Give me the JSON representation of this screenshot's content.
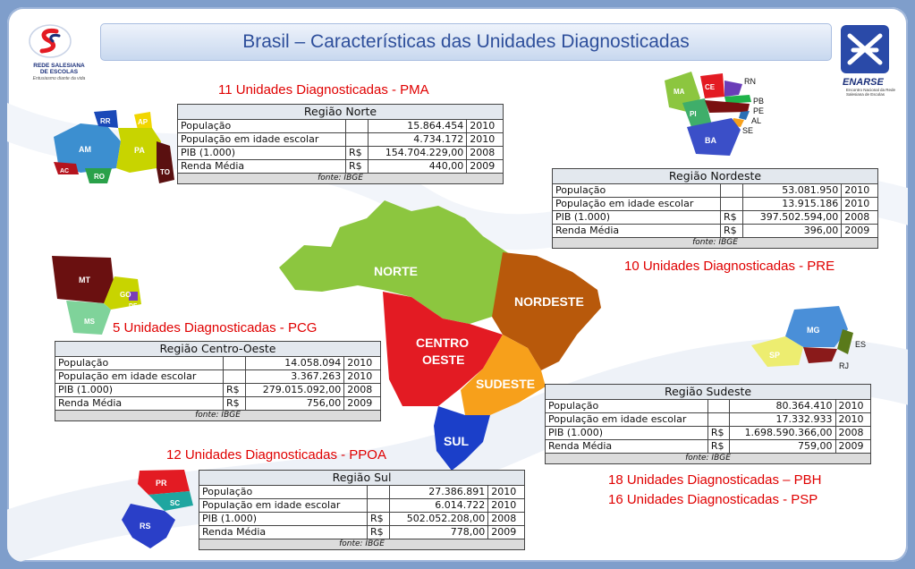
{
  "title": "Brasil – Características das Unidades Diagnosticadas",
  "logo_left": {
    "icon": "salesian-s-logo-icon",
    "name_line1": "REDE SALESIANA",
    "name_line2": "DE ESCOLAS",
    "tagline": "Entusiasmo diante da vida"
  },
  "logo_right": {
    "icon": "enarse-logo-icon",
    "name": "ENARSE",
    "sub": "Encontro Nacional da Rede Salesiana de Escolas"
  },
  "colors": {
    "norte": "#8cc63f",
    "nordeste": "#b8590b",
    "centro_oeste": "#e31b23",
    "sudeste": "#f7a01b",
    "sul": "#1b3fc9",
    "unit_text": "#e00000",
    "title_text": "#2e4f9b"
  },
  "regions": {
    "norte": {
      "units_label": "11 Unidades Diagnosticadas - PMA",
      "header": "Região Norte",
      "rows": [
        {
          "label": "População",
          "cur": "",
          "value": "15.864.454",
          "year": "2010"
        },
        {
          "label": "População em idade escolar",
          "cur": "",
          "value": "4.734.172",
          "year": "2010"
        },
        {
          "label": "PIB (1.000)",
          "cur": "R$",
          "value": "154.704.229,00",
          "year": "2008"
        },
        {
          "label": "Renda Média",
          "cur": "R$",
          "value": "440,00",
          "year": "2009"
        }
      ],
      "source": "fonte: IBGE",
      "states": [
        "RR",
        "AP",
        "AM",
        "PA",
        "AC",
        "RO",
        "TO"
      ]
    },
    "nordeste": {
      "units_label": "10 Unidades Diagnosticadas - PRE",
      "header": "Região Nordeste",
      "rows": [
        {
          "label": "População",
          "cur": "",
          "value": "53.081.950",
          "year": "2010"
        },
        {
          "label": "População em idade escolar",
          "cur": "",
          "value": "13.915.186",
          "year": "2010"
        },
        {
          "label": "PIB (1.000)",
          "cur": "R$",
          "value": "397.502.594,00",
          "year": "2008"
        },
        {
          "label": "Renda Média",
          "cur": "R$",
          "value": "396,00",
          "year": "2009"
        }
      ],
      "source": "fonte: IBGE",
      "states": [
        "MA",
        "CE",
        "RN",
        "PB",
        "PI",
        "PE",
        "AL",
        "SE",
        "BA"
      ]
    },
    "centro_oeste": {
      "units_label": "5 Unidades Diagnosticadas - PCG",
      "header": "Região Centro-Oeste",
      "rows": [
        {
          "label": "População",
          "cur": "",
          "value": "14.058.094",
          "year": "2010"
        },
        {
          "label": "População em idade escolar",
          "cur": "",
          "value": "3.367.263",
          "year": "2010"
        },
        {
          "label": "PIB (1.000)",
          "cur": "R$",
          "value": "279.015.092,00",
          "year": "2008"
        },
        {
          "label": "Renda Média",
          "cur": "R$",
          "value": "756,00",
          "year": "2009"
        }
      ],
      "source": "fonte: IBGE",
      "states": [
        "MT",
        "GO",
        "DF",
        "MS"
      ]
    },
    "sudeste": {
      "units_label_1": "18 Unidades Diagnosticadas – PBH",
      "units_label_2": "16 Unidades Diagnosticadas - PSP",
      "header": "Região Sudeste",
      "rows": [
        {
          "label": "População",
          "cur": "",
          "value": "80.364.410",
          "year": "2010"
        },
        {
          "label": "População em idade escolar",
          "cur": "",
          "value": "17.332.933",
          "year": "2010"
        },
        {
          "label": "PIB (1.000)",
          "cur": "R$",
          "value": "1.698.590.366,00",
          "year": "2008"
        },
        {
          "label": "Renda Média",
          "cur": "R$",
          "value": "759,00",
          "year": "2009"
        }
      ],
      "source": "fonte: IBGE",
      "states": [
        "MG",
        "ES",
        "SP",
        "RJ"
      ]
    },
    "sul": {
      "units_label": "12 Unidades Diagnosticadas - PPOA",
      "header": "Região Sul",
      "rows": [
        {
          "label": "População",
          "cur": "",
          "value": "27.386.891",
          "year": "2010"
        },
        {
          "label": "População em idade escolar",
          "cur": "",
          "value": "6.014.722",
          "year": "2010"
        },
        {
          "label": "PIB (1.000)",
          "cur": "R$",
          "value": "502.052.208,00",
          "year": "2008"
        },
        {
          "label": "Renda Média",
          "cur": "R$",
          "value": "778,00",
          "year": "2009"
        }
      ],
      "source": "fonte: IBGE",
      "states": [
        "PR",
        "SC",
        "RS"
      ]
    }
  },
  "brazil_map": {
    "labels": [
      "NORTE",
      "NORDESTE",
      "CENTRO",
      "OESTE",
      "SUDESTE",
      "SUL"
    ]
  }
}
